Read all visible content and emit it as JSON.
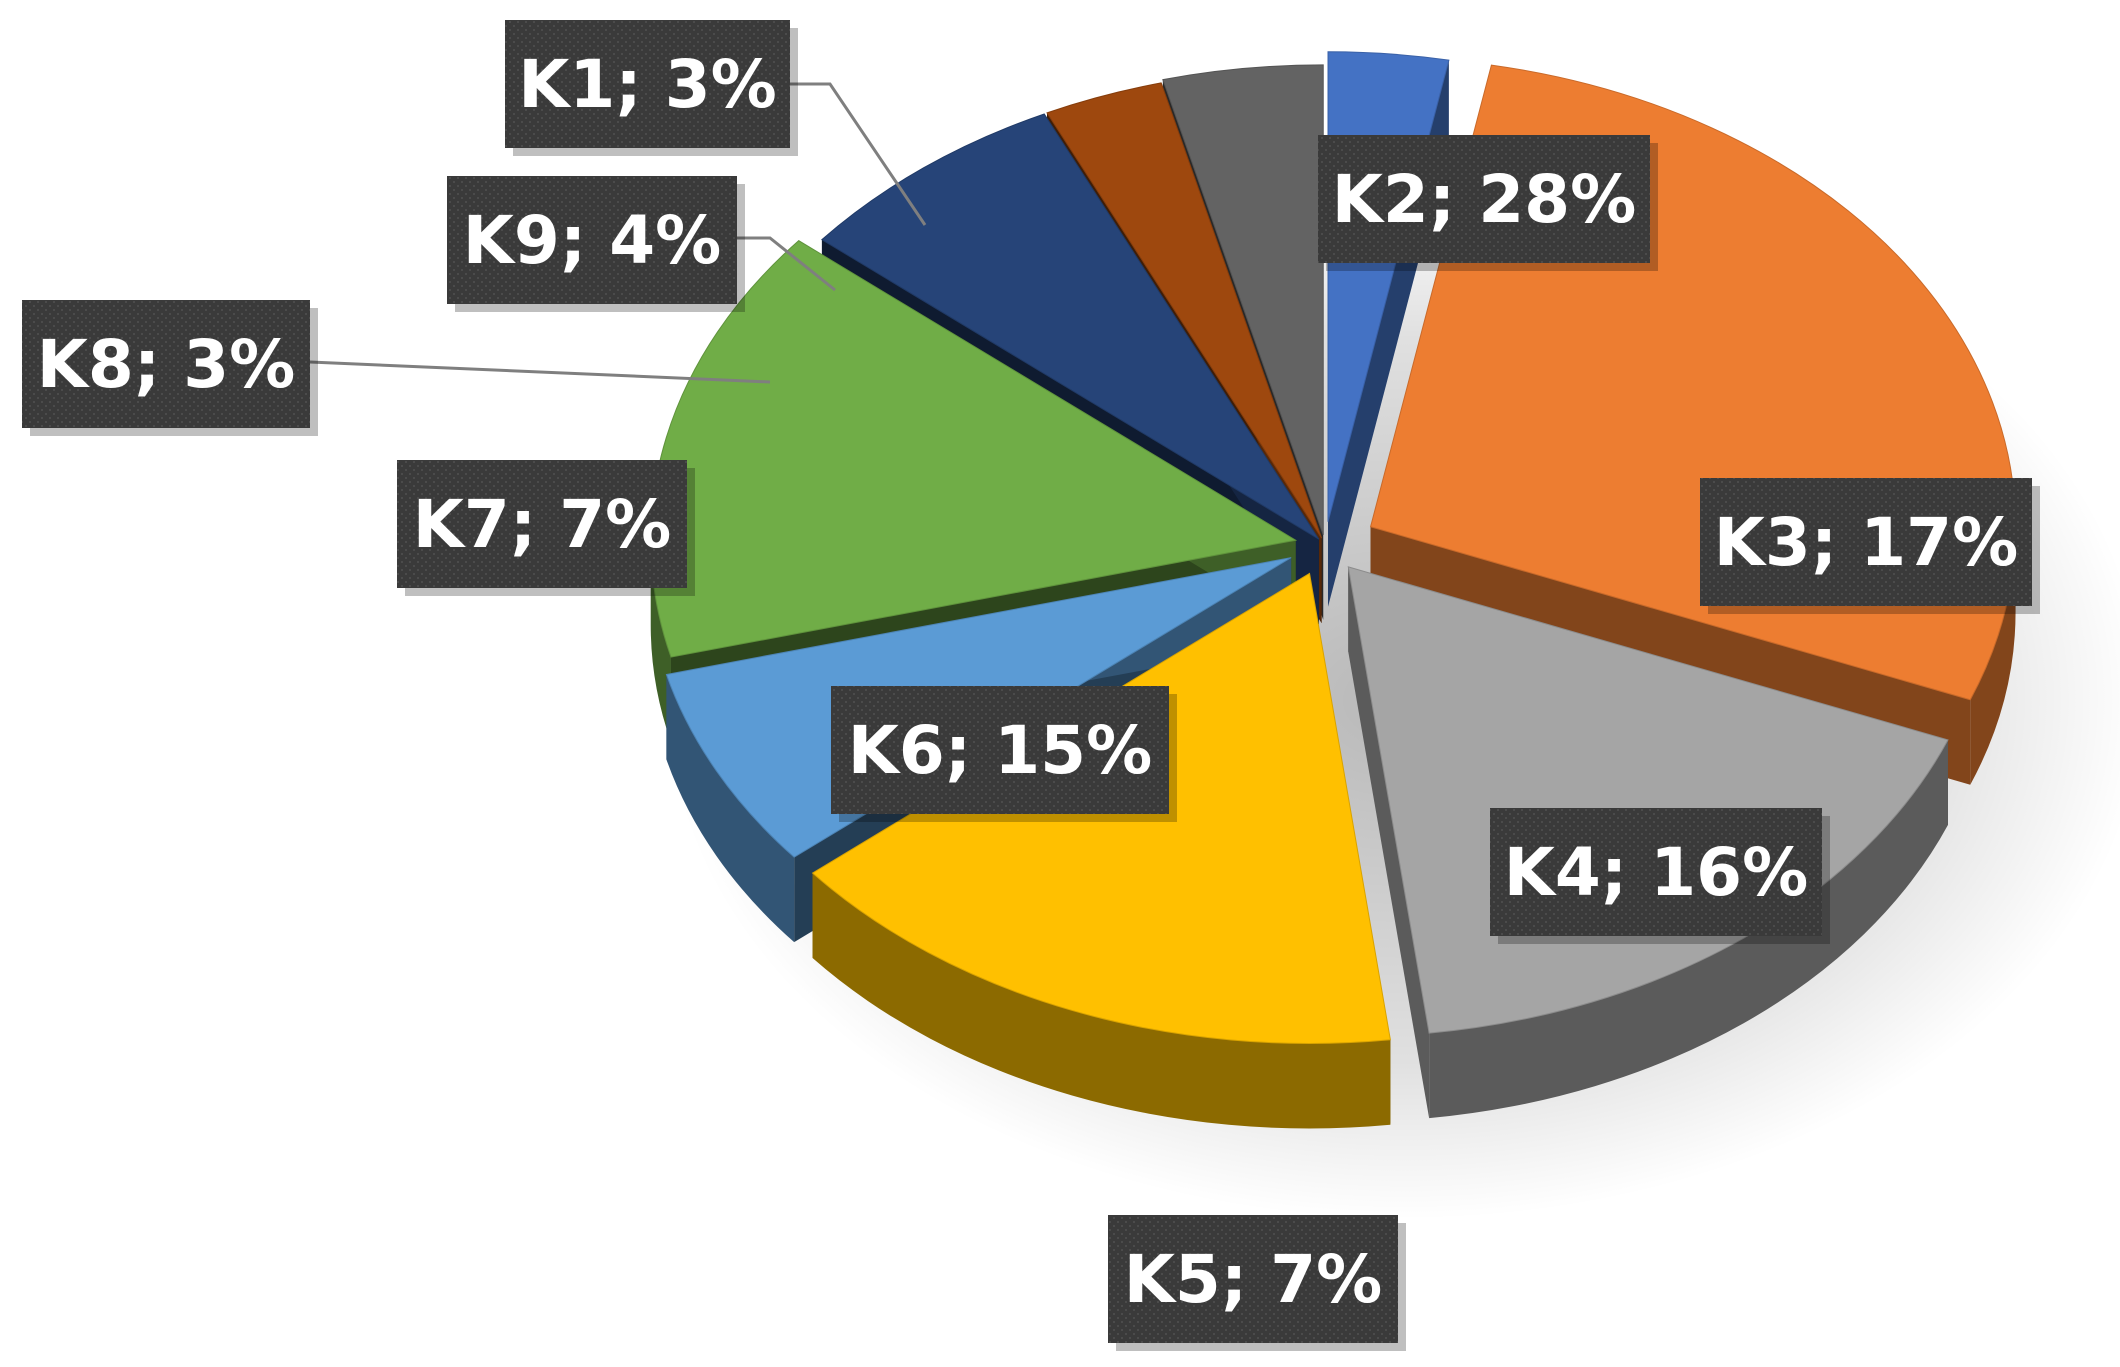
{
  "chart_data": {
    "type": "pie",
    "style": "3d-exploded",
    "title": "",
    "legend": "none",
    "label_format": "{name}; {value}%",
    "slices": [
      {
        "name": "K1",
        "value": 3,
        "label": "K1; 3%",
        "color": "#4472C4"
      },
      {
        "name": "K2",
        "value": 28,
        "label": "K2; 28%",
        "color": "#ED7D31"
      },
      {
        "name": "K3",
        "value": 17,
        "label": "K3; 17%",
        "color": "#A5A5A5"
      },
      {
        "name": "K4",
        "value": 16,
        "label": "K4; 16%",
        "color": "#FFC000"
      },
      {
        "name": "K5",
        "value": 7,
        "label": "K5; 7%",
        "color": "#5B9BD5"
      },
      {
        "name": "K6",
        "value": 15,
        "label": "K6; 15%",
        "color": "#70AD47"
      },
      {
        "name": "K7",
        "value": 7,
        "label": "K7; 7%",
        "color": "#264478"
      },
      {
        "name": "K8",
        "value": 3,
        "label": "K8; 3%",
        "color": "#9E480E"
      },
      {
        "name": "K9",
        "value": 4,
        "label": "K9; 4%",
        "color": "#636363"
      }
    ]
  }
}
